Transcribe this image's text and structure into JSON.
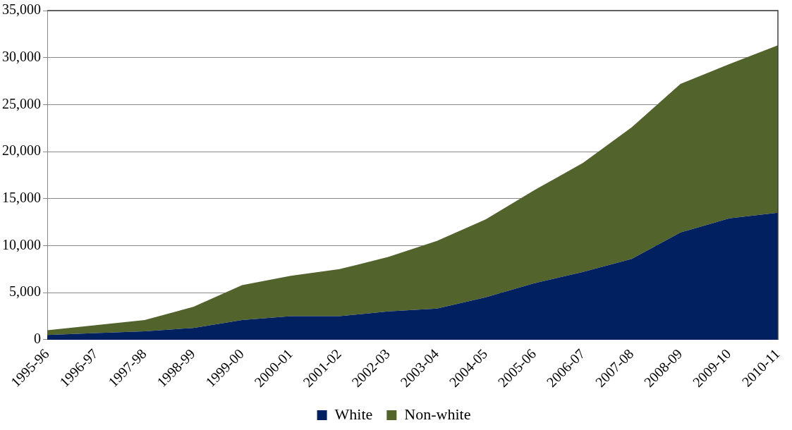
{
  "chart_data": {
    "type": "area",
    "stacked": true,
    "categories": [
      "1995-96",
      "1996-97",
      "1997-98",
      "1998-99",
      "1999-00",
      "2000-01",
      "2001-02",
      "2002-03",
      "2003-04",
      "2004-05",
      "2005-06",
      "2006-07",
      "2007-08",
      "2008-09",
      "2009-10",
      "2010-11"
    ],
    "series": [
      {
        "name": "White",
        "color": "#002060",
        "values": [
          500,
          700,
          900,
          1250,
          2100,
          2500,
          2500,
          3000,
          3300,
          4500,
          6000,
          7200,
          8600,
          11400,
          12900,
          13500
        ]
      },
      {
        "name": "Non-white",
        "color": "#52632b",
        "values": [
          500,
          850,
          1200,
          2250,
          3700,
          4300,
          5000,
          5800,
          7200,
          8300,
          9900,
          11600,
          14000,
          15800,
          16400,
          17800
        ]
      }
    ],
    "ylim": [
      0,
      35000
    ],
    "yticks": [
      {
        "value": 0,
        "label": "0"
      },
      {
        "value": 5000,
        "label": "5,000"
      },
      {
        "value": 10000,
        "label": "10,000"
      },
      {
        "value": 15000,
        "label": "15,000"
      },
      {
        "value": 20000,
        "label": "20,000"
      },
      {
        "value": 25000,
        "label": "25,000"
      },
      {
        "value": 30000,
        "label": "30,000"
      },
      {
        "value": 35000,
        "label": "35,000"
      }
    ],
    "grid": "y",
    "legend": "bottom"
  }
}
